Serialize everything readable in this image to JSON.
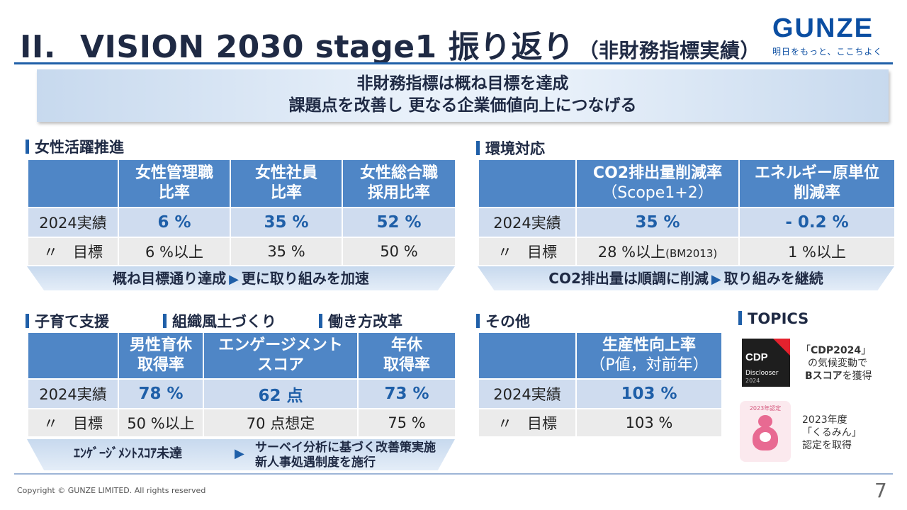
{
  "header": {
    "num": "II.",
    "title": "VISION 2030 stage1 振り返り",
    "subtitle": "（非財務指標実績）"
  },
  "logo": {
    "word": "GUNZE",
    "tagline": "明日をもっと、ここちよく"
  },
  "banner": {
    "line1": "非財務指標は概ね目標を達成",
    "line2": "課題点を改善し 更なる企業価値向上につなげる"
  },
  "women": {
    "section": "女性活躍推進",
    "headers": [
      {
        "l1": "女性管理職",
        "l2": "比率"
      },
      {
        "l1": "女性社員",
        "l2": "比率"
      },
      {
        "l1": "女性総合職",
        "l2": "採用比率"
      }
    ],
    "actual_label": "2024実績",
    "target_label": "〃　目標",
    "actual": [
      "6 %",
      "35 %",
      "52 %"
    ],
    "target": [
      "6 %以上",
      "35 %",
      "50 %"
    ],
    "summary_l": "概ね目標通り達成",
    "summary_r": "更に取り組みを加速"
  },
  "env": {
    "section": "環境対応",
    "headers": [
      {
        "l1": "CO2排出量削減率",
        "l2": "（Scope1+2）"
      },
      {
        "l1": "エネルギー原単位",
        "l2": "削減率"
      }
    ],
    "actual_label": "2024実績",
    "target_label": "〃　目標",
    "actual": [
      "35 %",
      "- 0.2 %"
    ],
    "target_main": "28 %以上",
    "target_note": "(BM2013)",
    "target2": "1 %以上",
    "summary_l": "CO2排出量は順調に削減",
    "summary_r": "取り組みを継続"
  },
  "childcare": {
    "sections": [
      "子育て支援",
      "組織風土づくり",
      "働き方改革"
    ],
    "headers": [
      {
        "l1": "男性育休",
        "l2": "取得率"
      },
      {
        "l1": "エンゲージメント",
        "l2": "スコア"
      },
      {
        "l1": "年休",
        "l2": "取得率"
      }
    ],
    "actual_label": "2024実績",
    "target_label": "〃　目標",
    "actual": [
      "78 %",
      "62 点",
      "73 %"
    ],
    "target": [
      "50 %以上",
      "70 点想定",
      "75 %"
    ],
    "summary_l": "ｴﾝｹﾞｰｼﾞﾒﾝﾄｽｺｱ未達",
    "summary_r1": "サーベイ分析に基づく改善策実施",
    "summary_r2": "新人事処遇制度を施行"
  },
  "other": {
    "section": "その他",
    "header": {
      "l1": "生産性向上率",
      "l2": "（P値，対前年）"
    },
    "actual_label": "2024実績",
    "target_label": "〃　目標",
    "actual": "103 %",
    "target": "103 %"
  },
  "topics": {
    "section": "TOPICS",
    "cdp_logo": {
      "mark": "CDP",
      "l1": "Disclooser",
      "l2": "2024"
    },
    "cdp_l1_pre": "「",
    "cdp_l1_bold": "CDP2024",
    "cdp_l1_post": "」",
    "cdp_l2": "の気候変動で",
    "cdp_l3_bold": "Bスコア",
    "cdp_l3_post": "を獲得",
    "kurumin_badge": "2023年認定",
    "kurumin_l1": "2023年度",
    "kurumin_l2": "「くるみん」",
    "kurumin_l3": "認定を取得"
  },
  "footer": {
    "copyright": "Copyright © GUNZE LIMITED. All rights reserved",
    "page": "7"
  },
  "colors": {
    "accent": "#1f5fa8",
    "header_fill": "#4f86c6",
    "actual_row": "#cfdcef",
    "target_row": "#ebebeb"
  }
}
